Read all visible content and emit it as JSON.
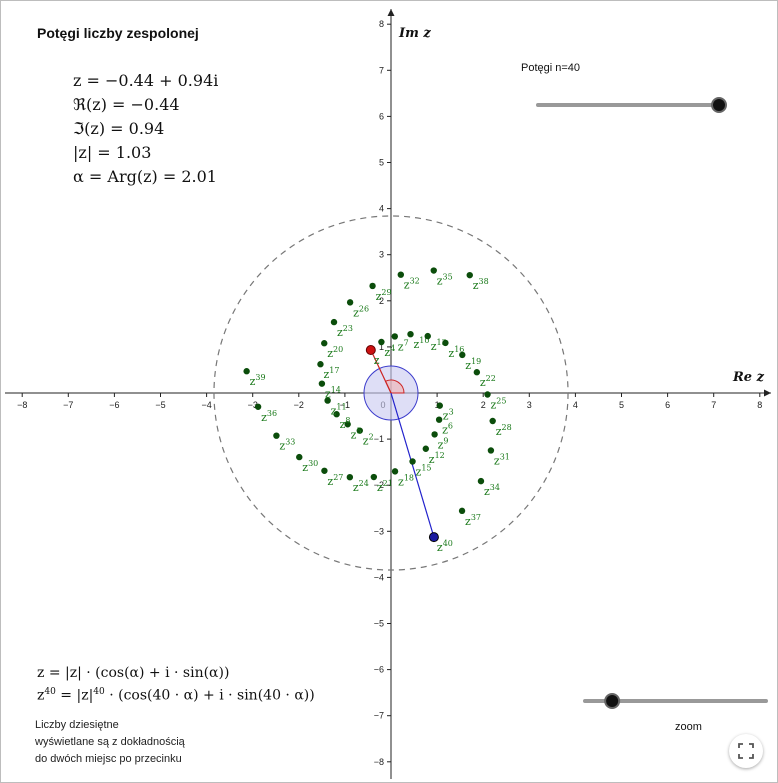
{
  "title": "Potęgi liczby zespolonej",
  "info": {
    "z_line": "z = −0.44 + 0.94i",
    "re_line": "ℜ(z) = −0.44",
    "im_line": "ℑ(z) = 0.94",
    "abs_line": "|z| = 1.03",
    "arg_line": "α = Arg(z) = 2.01"
  },
  "slider_n": {
    "label": "Potęgi n=40",
    "value": 40,
    "min": 1,
    "max": 40
  },
  "slider_zoom": {
    "label": "zoom",
    "fraction": 0.15
  },
  "formula1": "z = |z| · (cos(α) + i · sin(α))",
  "formula2_prefix": "z",
  "formula2_sup": "40",
  "formula2_mid": " = |z|",
  "formula2_sup2": "40",
  "formula2_tail": " · (cos(40 · α) + i · sin(40 · α))",
  "note_lines": [
    "Liczby dziesiętne",
    "wyświetlane są z dokładnością",
    "do dwóch miejsc po przecinku"
  ],
  "axes": {
    "x_label": "Re z",
    "y_label": "Im z",
    "x_ticks": [
      -8,
      -7,
      -6,
      -5,
      -4,
      -3,
      -2,
      -1,
      0,
      1,
      2,
      3,
      4,
      5,
      6,
      7,
      8
    ],
    "y_ticks": [
      -8,
      -7,
      -6,
      -5,
      -4,
      -3,
      -2,
      -1,
      1,
      2,
      3,
      4,
      5,
      6,
      7,
      8
    ]
  },
  "chart_data": {
    "type": "scatter",
    "z": {
      "re": -0.44,
      "im": 0.94,
      "modulus": 1.03,
      "arg": 2.01
    },
    "n": 40,
    "dashed_circle_radius": 3.84,
    "xlim": [
      -8.3,
      8.3
    ],
    "ylim": [
      -8.2,
      8.3
    ],
    "colors": {
      "points": "#0b4d0b",
      "labels": "#1b7a1b",
      "vector_n": "#2222cc",
      "vector_1": "#cc2222",
      "circle": "#888888",
      "angle_fill": "#c8c8f0"
    }
  },
  "icons": {
    "fullscreen": "fullscreen-icon"
  }
}
